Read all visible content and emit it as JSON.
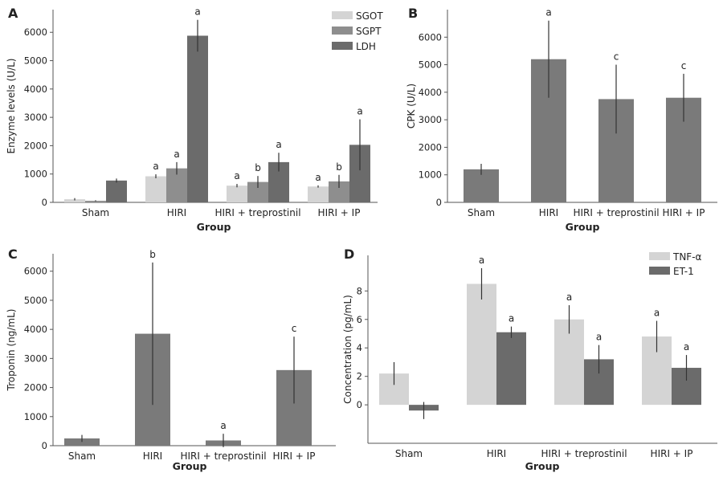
{
  "chart_data": [
    {
      "panel": "A",
      "type": "bar",
      "categories": [
        "Sham",
        "HIRI",
        "HIRI + treprostinil",
        "HIRI + IP"
      ],
      "xlabel": "Group",
      "ylabel": "Enzyme levels (U/L)",
      "ylim": [
        0,
        6800
      ],
      "yticks": [
        0,
        1000,
        2000,
        3000,
        4000,
        5000,
        6000
      ],
      "legend_position": "top-right",
      "series": [
        {
          "name": "SGOT",
          "color": "#d4d4d4",
          "values": [
            110,
            920,
            590,
            560
          ],
          "errors": [
            40,
            70,
            60,
            40
          ],
          "annotations": [
            "",
            "a",
            "a",
            "a"
          ]
        },
        {
          "name": "SGPT",
          "color": "#8e8e8e",
          "values": [
            55,
            1200,
            720,
            740
          ],
          "errors": [
            20,
            220,
            210,
            230
          ],
          "annotations": [
            "",
            "a",
            "b",
            "b"
          ]
        },
        {
          "name": "LDH",
          "color": "#6b6b6b",
          "values": [
            770,
            5880,
            1420,
            2030
          ],
          "errors": [
            70,
            560,
            330,
            900
          ],
          "annotations": [
            "",
            "a",
            "a",
            "a"
          ]
        }
      ]
    },
    {
      "panel": "B",
      "type": "bar",
      "categories": [
        "Sham",
        "HIRI",
        "HIRI + treprostinil",
        "HIRI + IP"
      ],
      "xlabel": "Group",
      "ylabel": "CPK (U/L)",
      "ylim": [
        0,
        7000
      ],
      "yticks": [
        0,
        1000,
        2000,
        3000,
        4000,
        5000,
        6000
      ],
      "series": [
        {
          "color": "#7a7a7a",
          "values": [
            1200,
            5200,
            3750,
            3800
          ],
          "errors": [
            200,
            1400,
            1250,
            870
          ],
          "annotations": [
            "",
            "a",
            "c",
            "c"
          ]
        }
      ]
    },
    {
      "panel": "C",
      "type": "bar",
      "categories": [
        "Sham",
        "HIRI",
        "HIRI + treprostinil",
        "HIRI + IP"
      ],
      "xlabel": "Group",
      "ylabel": "Troponin (ng/mL)",
      "ylim": [
        0,
        6600
      ],
      "yticks": [
        0,
        1000,
        2000,
        3000,
        4000,
        5000,
        6000
      ],
      "series": [
        {
          "color": "#7a7a7a",
          "values": [
            250,
            3850,
            180,
            2600
          ],
          "errors": [
            120,
            2450,
            230,
            1150
          ],
          "annotations": [
            "",
            "b",
            "a",
            "c"
          ]
        }
      ]
    },
    {
      "panel": "D",
      "type": "bar",
      "categories": [
        "Sham",
        "HIRI",
        "HIRI + treprostinil",
        "HIRI + IP"
      ],
      "xlabel": "Group",
      "ylabel": "Concentration (pg/mL)",
      "ylim": [
        -2.7,
        10.5
      ],
      "yticks": [
        0,
        2,
        4,
        6,
        8
      ],
      "legend_position": "top-right",
      "series": [
        {
          "name": "TNF-α",
          "color": "#d4d4d4",
          "values": [
            2.2,
            8.5,
            6.0,
            4.8
          ],
          "errors": [
            0.8,
            1.1,
            1.0,
            1.1
          ],
          "annotations": [
            "",
            "a",
            "a",
            "a"
          ]
        },
        {
          "name": "ET-1",
          "color": "#6b6b6b",
          "values": [
            -0.4,
            5.1,
            3.2,
            2.6
          ],
          "errors": [
            0.6,
            0.4,
            1.0,
            0.9
          ],
          "annotations": [
            "",
            "a",
            "a",
            "a"
          ]
        }
      ]
    }
  ]
}
